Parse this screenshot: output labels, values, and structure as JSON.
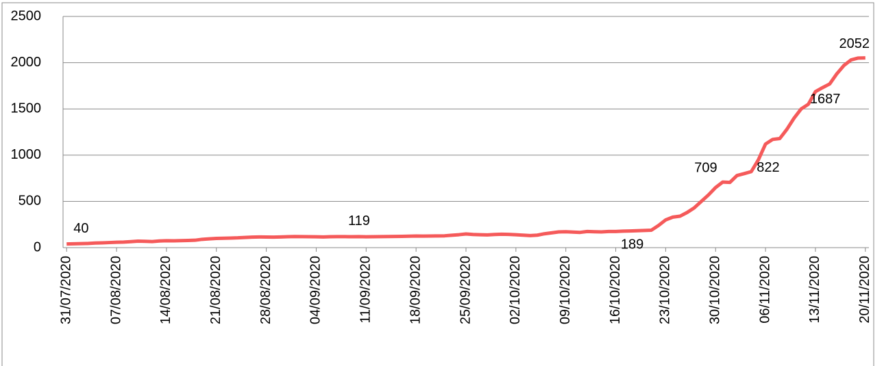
{
  "chart_data": {
    "type": "line",
    "categories": [
      "31/07/2020",
      null,
      null,
      null,
      null,
      null,
      null,
      "07/08/2020",
      null,
      null,
      null,
      null,
      null,
      null,
      "14/08/2020",
      null,
      null,
      null,
      null,
      null,
      null,
      "21/08/2020",
      null,
      null,
      null,
      null,
      null,
      null,
      "28/08/2020",
      null,
      null,
      null,
      null,
      null,
      null,
      "04/09/2020",
      null,
      null,
      null,
      null,
      null,
      null,
      "11/09/2020",
      null,
      null,
      null,
      null,
      null,
      null,
      "18/09/2020",
      null,
      null,
      null,
      null,
      null,
      null,
      "25/09/2020",
      null,
      null,
      null,
      null,
      null,
      null,
      "02/10/2020",
      null,
      null,
      null,
      null,
      null,
      null,
      "09/10/2020",
      null,
      null,
      null,
      null,
      null,
      null,
      "16/10/2020",
      null,
      null,
      null,
      null,
      null,
      null,
      "23/10/2020",
      null,
      null,
      null,
      null,
      null,
      null,
      "30/10/2020",
      null,
      null,
      null,
      null,
      null,
      null,
      "06/11/2020",
      null,
      null,
      null,
      null,
      null,
      null,
      "13/11/2020",
      null,
      null,
      null,
      null,
      null,
      null,
      "20/11/2020"
    ],
    "values": [
      40,
      42,
      43,
      45,
      50,
      52,
      55,
      58,
      60,
      65,
      70,
      68,
      66,
      72,
      75,
      74,
      76,
      78,
      80,
      90,
      95,
      100,
      102,
      104,
      106,
      110,
      114,
      116,
      115,
      114,
      116,
      118,
      120,
      119,
      118,
      117,
      116,
      118,
      119,
      119,
      118,
      119,
      117,
      118,
      119,
      120,
      121,
      122,
      124,
      126,
      125,
      126,
      127,
      128,
      134,
      140,
      148,
      142,
      140,
      138,
      142,
      145,
      143,
      140,
      135,
      130,
      135,
      150,
      160,
      170,
      172,
      168,
      165,
      175,
      172,
      170,
      175,
      175,
      178,
      180,
      183,
      186,
      189,
      240,
      300,
      330,
      340,
      380,
      430,
      500,
      570,
      650,
      709,
      705,
      780,
      800,
      822,
      950,
      1120,
      1170,
      1180,
      1280,
      1400,
      1500,
      1550,
      1687,
      1730,
      1770,
      1880,
      1970,
      2030,
      2050,
      2052
    ],
    "value_labels": [
      "40",
      null,
      null,
      null,
      null,
      null,
      null,
      null,
      null,
      null,
      null,
      null,
      null,
      null,
      null,
      null,
      null,
      null,
      null,
      null,
      null,
      null,
      null,
      null,
      null,
      null,
      null,
      null,
      null,
      null,
      null,
      null,
      null,
      null,
      null,
      null,
      null,
      null,
      null,
      null,
      null,
      "119",
      null,
      null,
      null,
      null,
      null,
      null,
      null,
      null,
      null,
      null,
      null,
      null,
      null,
      null,
      null,
      null,
      null,
      null,
      null,
      null,
      null,
      null,
      null,
      null,
      null,
      null,
      null,
      null,
      null,
      null,
      null,
      null,
      null,
      null,
      null,
      null,
      null,
      null,
      null,
      null,
      "189",
      null,
      null,
      null,
      null,
      null,
      null,
      null,
      null,
      null,
      "709",
      null,
      null,
      null,
      "822",
      null,
      null,
      null,
      null,
      null,
      null,
      null,
      null,
      "1687",
      null,
      null,
      null,
      null,
      null,
      null,
      "2052"
    ],
    "color": "#f55a5a",
    "ylim": [
      0,
      2500
    ],
    "yticks": [
      0,
      500,
      1000,
      1500,
      2000,
      2500
    ],
    "grid": true
  }
}
